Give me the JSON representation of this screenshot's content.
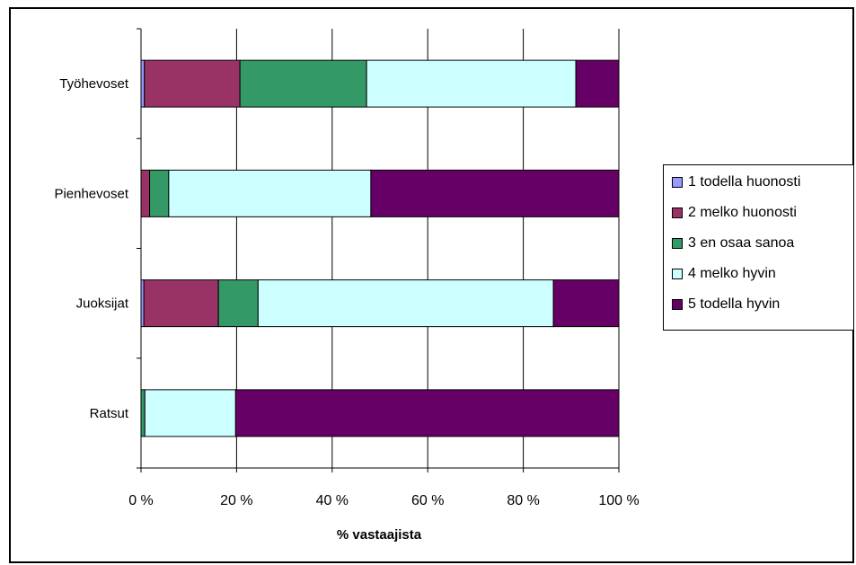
{
  "chart_data": {
    "type": "bar",
    "orientation": "horizontal",
    "stacked": "percent",
    "categories": [
      "Työhevoset",
      "Pienhevoset",
      "Juoksijat",
      "Ratsut"
    ],
    "series": [
      {
        "name": "1 todella huonosti",
        "color": "#9999FF",
        "values": [
          0.7,
          0.0,
          0.6,
          0.0
        ]
      },
      {
        "name": "2 melko huonosti",
        "color": "#993366",
        "values": [
          20.0,
          1.8,
          15.6,
          0.0
        ]
      },
      {
        "name": "3 en osaa sanoa",
        "color": "#339966",
        "values": [
          26.5,
          4.0,
          8.3,
          0.8
        ]
      },
      {
        "name": "4 melko hyvin",
        "color": "#CCFFFF",
        "values": [
          43.8,
          42.3,
          61.8,
          19.0
        ]
      },
      {
        "name": "5 todella hyvin",
        "color": "#660066",
        "values": [
          9.0,
          51.9,
          13.7,
          80.2
        ]
      }
    ],
    "xlabel": "% vastaajista",
    "xlim": [
      0,
      100
    ],
    "xticks": [
      "0 %",
      "20 %",
      "40 %",
      "60 %",
      "80 %",
      "100 %"
    ],
    "grid": "vertical",
    "legend_position": "right"
  }
}
